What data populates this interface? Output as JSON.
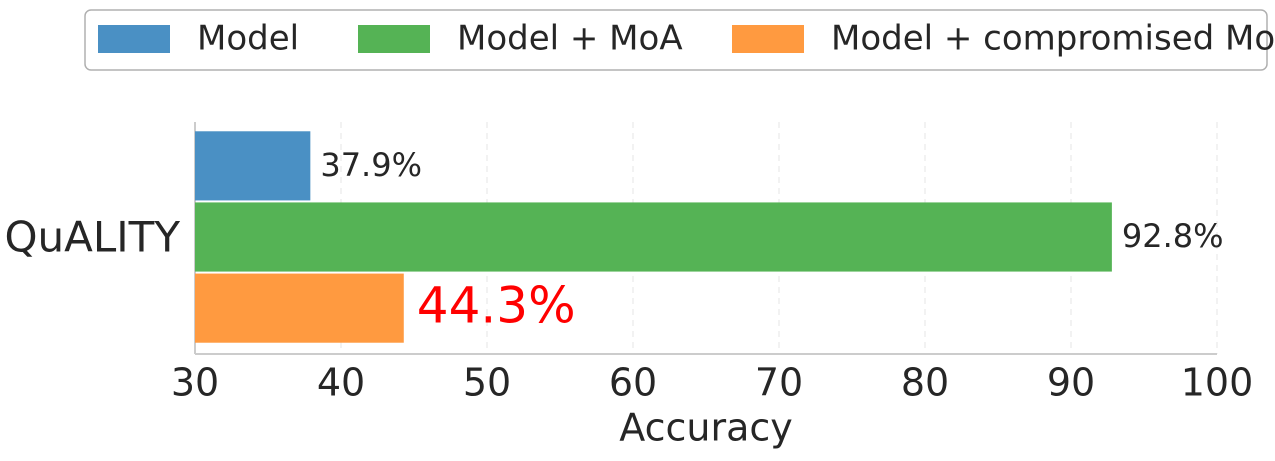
{
  "chart_data": {
    "type": "barh",
    "categories": [
      "QuALITY"
    ],
    "series": [
      {
        "name": "Model",
        "color": "#4a90c4",
        "values": [
          37.9
        ],
        "value_labels": [
          "37.9%"
        ],
        "label_color": "#262626"
      },
      {
        "name": "Model + MoA",
        "color": "#55b355",
        "values": [
          92.8
        ],
        "value_labels": [
          "92.8%"
        ],
        "label_color": "#262626"
      },
      {
        "name": "Model + compromised MoA",
        "color": "#ff9a40",
        "values": [
          44.3
        ],
        "value_labels": [
          "44.3%"
        ],
        "label_color": "#ff0000"
      }
    ],
    "xlabel": "Accuracy",
    "xlim": [
      30,
      100
    ],
    "xticks": [
      30,
      40,
      50,
      60,
      70,
      80,
      90,
      100
    ],
    "grid": true,
    "legend": "top"
  }
}
